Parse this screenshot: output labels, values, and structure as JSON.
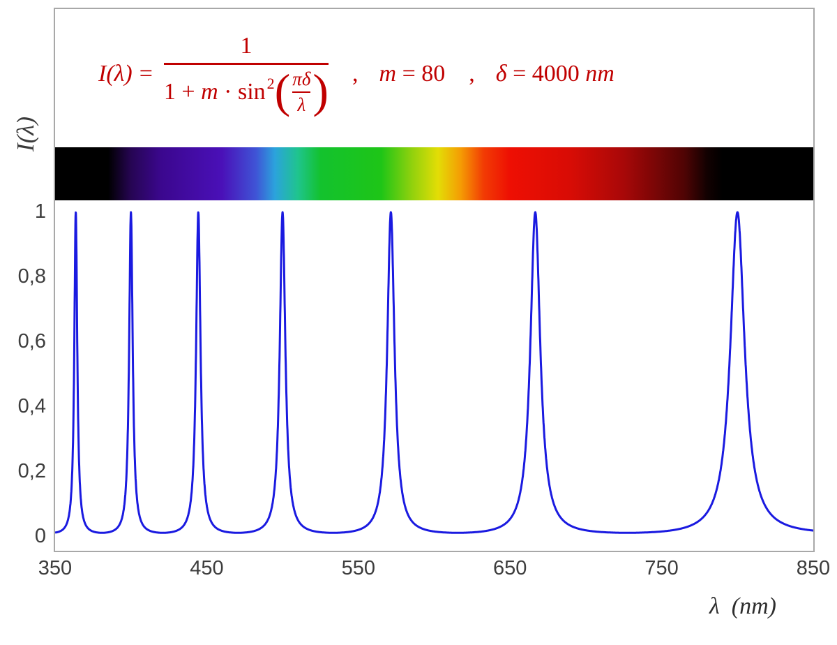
{
  "figure": {
    "background": "#ffffff",
    "frame_border_color": "#a8a8a8"
  },
  "formula": {
    "color": "#c00000",
    "lhs_var": "I(λ)",
    "equals": "=",
    "numerator": "1",
    "den_plus": "1 + ",
    "den_var": "m",
    "den_sin": " · sin",
    "den_exp": "2",
    "paren_open": "(",
    "inner_num": "πδ",
    "inner_den": "λ",
    "paren_close": ")",
    "comma": ",",
    "m_var": "m",
    "m_val": " = 80",
    "d_var": "δ",
    "d_val": " = 4000 ",
    "d_unit": "nm"
  },
  "chart_data": {
    "type": "line",
    "title": "I(λ) = 1 / (1 + m·sin²(πδ/λ)) ,  m = 80 ,  δ = 4000 nm",
    "function": "I(lambda) = 1 / (1 + m * sin(pi*delta/lambda)^2)",
    "parameters": {
      "m": 80,
      "delta_nm": 4000
    },
    "x_min": 350,
    "x_max": 850,
    "y_min": 0,
    "y_max": 1,
    "x_ticks": [
      "350",
      "450",
      "550",
      "650",
      "750",
      "850"
    ],
    "x_tick_values": [
      350,
      450,
      550,
      650,
      750,
      850
    ],
    "y_ticks": [
      "0",
      "0,2",
      "0,4",
      "0,6",
      "0,8",
      "1"
    ],
    "y_tick_values": [
      0,
      0.2,
      0.4,
      0.6,
      0.8,
      1
    ],
    "xlabel": "λ  (nm)",
    "ylabel": "I(λ)",
    "grid": false,
    "legend": false,
    "line_color": "#1a1ae0",
    "line_width": 3,
    "peak_wavelengths_nm": [
      363.64,
      400.0,
      444.44,
      500.0,
      571.43,
      666.67,
      800.0
    ],
    "peak_value": 1,
    "baseline_min_value": 0.0123,
    "spectrum_bar": {
      "range_nm": [
        350,
        850
      ],
      "visible_band_nm": [
        385,
        780
      ],
      "gradient_stops": [
        {
          "pos": 0.0,
          "color": "#000000"
        },
        {
          "pos": 7.0,
          "color": "#000000"
        },
        {
          "pos": 10.0,
          "color": "#260553"
        },
        {
          "pos": 14.0,
          "color": "#3b078e"
        },
        {
          "pos": 22.0,
          "color": "#4a10b8"
        },
        {
          "pos": 26.5,
          "color": "#3f54d6"
        },
        {
          "pos": 29.0,
          "color": "#2ba3dc"
        },
        {
          "pos": 32.0,
          "color": "#1fc48e"
        },
        {
          "pos": 35.0,
          "color": "#13c22e"
        },
        {
          "pos": 43.0,
          "color": "#1ec517"
        },
        {
          "pos": 47.0,
          "color": "#8fd10d"
        },
        {
          "pos": 50.5,
          "color": "#e3dd06"
        },
        {
          "pos": 53.5,
          "color": "#f59c04"
        },
        {
          "pos": 56.5,
          "color": "#f23c04"
        },
        {
          "pos": 60.0,
          "color": "#ee0f03"
        },
        {
          "pos": 68.0,
          "color": "#d80c05"
        },
        {
          "pos": 75.0,
          "color": "#a80808"
        },
        {
          "pos": 83.0,
          "color": "#4f0404"
        },
        {
          "pos": 86.0,
          "color": "#120101"
        },
        {
          "pos": 88.0,
          "color": "#000000"
        },
        {
          "pos": 100.0,
          "color": "#000000"
        }
      ]
    }
  }
}
